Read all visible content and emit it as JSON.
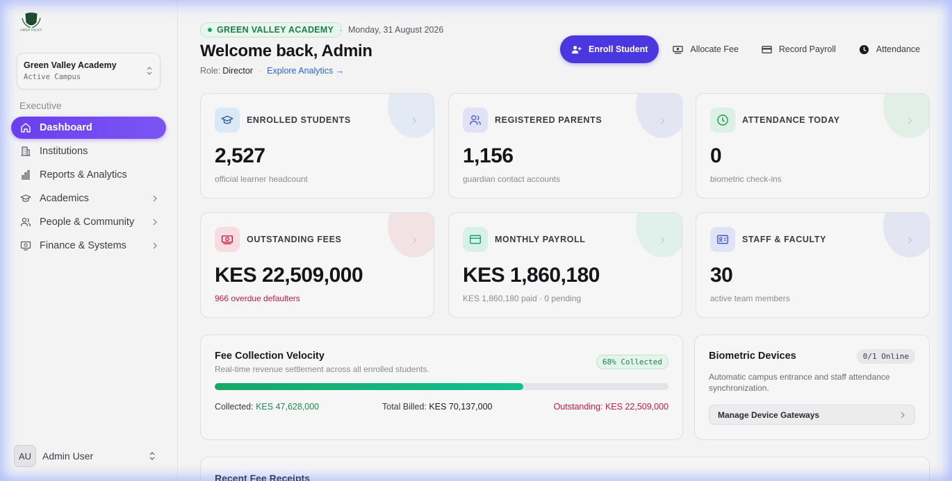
{
  "sidebar": {
    "logo_text": "GREEN VALLEY",
    "campus": {
      "name": "Green Valley Academy",
      "status": "Active Campus"
    },
    "section_label": "Executive",
    "items": [
      {
        "label": "Dashboard",
        "icon": "home-icon",
        "active": true
      },
      {
        "label": "Institutions",
        "icon": "building-icon"
      },
      {
        "label": "Reports & Analytics",
        "icon": "bar-chart-icon"
      },
      {
        "label": "Academics",
        "icon": "graduation-cap-icon",
        "expandable": true
      },
      {
        "label": "People & Community",
        "icon": "users-icon",
        "expandable": true
      },
      {
        "label": "Finance & Systems",
        "icon": "monitor-icon",
        "expandable": true
      }
    ],
    "user": {
      "initials": "AU",
      "name": "Admin User"
    }
  },
  "header": {
    "school_badge": "GREEN VALLEY ACADEMY",
    "separator": "·",
    "date": "Monday, 31 August 2026",
    "welcome": "Welcome back, Admin",
    "role_label": "Role:",
    "role_value": "Director",
    "explore_link": "Explore Analytics →"
  },
  "actions": {
    "enroll": "Enroll Student",
    "allocate": "Allocate Fee",
    "payroll": "Record Payroll",
    "attendance": "Attendance"
  },
  "stats": [
    {
      "label": "ENROLLED STUDENTS",
      "value": "2,527",
      "sub": "official learner headcount",
      "icon": "graduation-cap-icon",
      "color": "#2f7fd0"
    },
    {
      "label": "REGISTERED PARENTS",
      "value": "1,156",
      "sub": "guardian contact accounts",
      "icon": "users-icon",
      "color": "#4a55c8"
    },
    {
      "label": "ATTENDANCE TODAY",
      "value": "0",
      "sub": "biometric check-ins",
      "icon": "clock-icon",
      "color": "#1e9a5e"
    },
    {
      "label": "OUTSTANDING FEES",
      "value": "KES 22,509,000",
      "sub": "966 overdue defaulters",
      "icon": "banknote-icon",
      "color": "#c8193f"
    },
    {
      "label": "MONTHLY PAYROLL",
      "value": "KES 1,860,180",
      "sub": "KES 1,860,180 paid · 0 pending",
      "icon": "credit-card-icon",
      "color": "#15a17a"
    },
    {
      "label": "STAFF & FACULTY",
      "value": "30",
      "sub": "active team members",
      "icon": "id-card-icon",
      "color": "#4a55c8"
    }
  ],
  "fee_velocity": {
    "title": "Fee Collection Velocity",
    "subtitle": "Real-time revenue settlement across all enrolled students.",
    "badge": "68% Collected",
    "progress": 0.68,
    "collected_label": "Collected:",
    "collected_value": "KES 47,628,000",
    "billed_label": "Total Billed:",
    "billed_value": "KES 70,137,000",
    "outstanding_label": "Outstanding:",
    "outstanding_value": "KES 22,509,000"
  },
  "biometric": {
    "title": "Biometric Devices",
    "badge": "0/1 Online",
    "description": "Automatic campus entrance and staff attendance synchronization.",
    "button": "Manage Device Gateways"
  },
  "receipts": {
    "title": "Recent Fee Receipts"
  }
}
